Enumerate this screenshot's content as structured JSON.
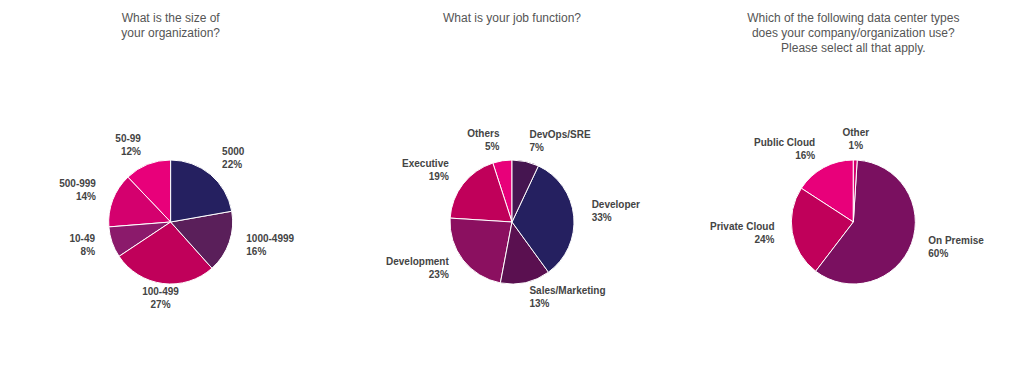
{
  "chart_data": [
    {
      "type": "pie",
      "title": "What is the size of\nyour organization?",
      "categories": [
        "50-99",
        "500-999",
        "10-49",
        "100-499",
        "1000-4999",
        "5000"
      ],
      "values": [
        12,
        14,
        8,
        27,
        16,
        22
      ],
      "value_labels": [
        "12%",
        "14%",
        "8%",
        "27%",
        "16%",
        "22%"
      ],
      "colors": [
        "#e8007a",
        "#d4006e",
        "#8b1a6b",
        "#c0005a",
        "#5a1f5a",
        "#252060"
      ],
      "data_labels": true
    },
    {
      "type": "pie",
      "title": "What is your job function?",
      "categories": [
        "Others",
        "Executive",
        "Development",
        "Sales/Marketing",
        "Developer",
        "DevOps/SRE"
      ],
      "values": [
        5,
        19,
        23,
        13,
        33,
        7
      ],
      "value_labels": [
        "5%",
        "19%",
        "23%",
        "13%",
        "33%",
        "7%"
      ],
      "colors": [
        "#e8007a",
        "#c0005a",
        "#8b1060",
        "#5a1050",
        "#252060",
        "#451550"
      ],
      "data_labels": true
    },
    {
      "type": "pie",
      "title": "Which of the following data center types\ndoes your company/organization use?\nPlease select all that apply.",
      "categories": [
        "Public Cloud",
        "Private Cloud",
        "On Premise",
        "Other"
      ],
      "values": [
        16,
        24,
        60,
        1
      ],
      "value_labels": [
        "16%",
        "24%",
        "60%",
        "1%"
      ],
      "colors": [
        "#e8007a",
        "#c0005a",
        "#7a1060",
        "#d4006e"
      ],
      "data_labels": true
    }
  ]
}
